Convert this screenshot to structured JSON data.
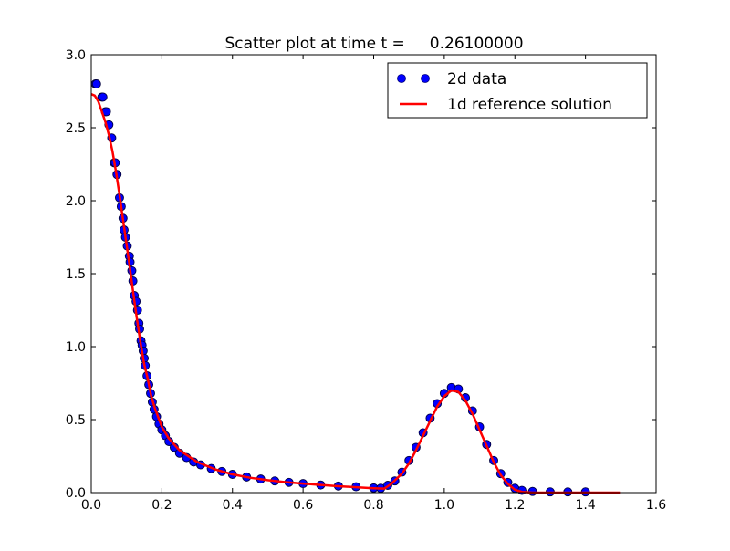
{
  "chart_data": {
    "type": "scatter",
    "title": "Scatter plot at time t =     0.26100000",
    "xlabel": "",
    "ylabel": "",
    "xlim": [
      0.0,
      1.6
    ],
    "ylim": [
      0.0,
      3.0
    ],
    "grid": false,
    "legend_position": "top-right",
    "x_ticks": [
      "0.0",
      "0.2",
      "0.4",
      "0.6",
      "0.8",
      "1.0",
      "1.2",
      "1.4",
      "1.6"
    ],
    "y_ticks": [
      "0.0",
      "0.5",
      "1.0",
      "1.5",
      "2.0",
      "2.5",
      "3.0"
    ],
    "series": [
      {
        "name": "2d data",
        "kind": "scatter",
        "color": "#0000ff",
        "points": [
          [
            0.012,
            2.8
          ],
          [
            0.015,
            2.8
          ],
          [
            0.03,
            2.71
          ],
          [
            0.033,
            2.71
          ],
          [
            0.04,
            2.61
          ],
          [
            0.043,
            2.61
          ],
          [
            0.05,
            2.52
          ],
          [
            0.058,
            2.43
          ],
          [
            0.065,
            2.26
          ],
          [
            0.068,
            2.26
          ],
          [
            0.073,
            2.18
          ],
          [
            0.08,
            2.02
          ],
          [
            0.085,
            1.96
          ],
          [
            0.09,
            1.88
          ],
          [
            0.093,
            1.8
          ],
          [
            0.097,
            1.75
          ],
          [
            0.102,
            1.69
          ],
          [
            0.108,
            1.62
          ],
          [
            0.11,
            1.58
          ],
          [
            0.115,
            1.52
          ],
          [
            0.118,
            1.45
          ],
          [
            0.122,
            1.35
          ],
          [
            0.127,
            1.31
          ],
          [
            0.131,
            1.25
          ],
          [
            0.135,
            1.16
          ],
          [
            0.137,
            1.12
          ],
          [
            0.141,
            1.04
          ],
          [
            0.144,
            1.01
          ],
          [
            0.147,
            0.97
          ],
          [
            0.15,
            0.92
          ],
          [
            0.153,
            0.87
          ],
          [
            0.158,
            0.8
          ],
          [
            0.163,
            0.74
          ],
          [
            0.168,
            0.68
          ],
          [
            0.173,
            0.62
          ],
          [
            0.178,
            0.57
          ],
          [
            0.185,
            0.52
          ],
          [
            0.192,
            0.47
          ],
          [
            0.2,
            0.43
          ],
          [
            0.21,
            0.39
          ],
          [
            0.22,
            0.35
          ],
          [
            0.235,
            0.31
          ],
          [
            0.25,
            0.27
          ],
          [
            0.27,
            0.24
          ],
          [
            0.29,
            0.21
          ],
          [
            0.31,
            0.19
          ],
          [
            0.34,
            0.165
          ],
          [
            0.37,
            0.145
          ],
          [
            0.4,
            0.125
          ],
          [
            0.44,
            0.107
          ],
          [
            0.48,
            0.093
          ],
          [
            0.52,
            0.08
          ],
          [
            0.56,
            0.07
          ],
          [
            0.6,
            0.062
          ],
          [
            0.65,
            0.052
          ],
          [
            0.7,
            0.045
          ],
          [
            0.75,
            0.04
          ],
          [
            0.8,
            0.032
          ],
          [
            0.82,
            0.03
          ],
          [
            0.84,
            0.05
          ],
          [
            0.86,
            0.08
          ],
          [
            0.88,
            0.14
          ],
          [
            0.9,
            0.22
          ],
          [
            0.92,
            0.31
          ],
          [
            0.94,
            0.41
          ],
          [
            0.96,
            0.51
          ],
          [
            0.98,
            0.61
          ],
          [
            1.0,
            0.68
          ],
          [
            1.02,
            0.72
          ],
          [
            1.04,
            0.71
          ],
          [
            1.06,
            0.65
          ],
          [
            1.08,
            0.56
          ],
          [
            1.1,
            0.45
          ],
          [
            1.12,
            0.33
          ],
          [
            1.14,
            0.22
          ],
          [
            1.16,
            0.13
          ],
          [
            1.18,
            0.07
          ],
          [
            1.2,
            0.03
          ],
          [
            1.22,
            0.015
          ],
          [
            1.25,
            0.008
          ],
          [
            1.3,
            0.005
          ],
          [
            1.35,
            0.005
          ],
          [
            1.4,
            0.005
          ]
        ]
      },
      {
        "name": "1d reference solution",
        "kind": "line",
        "color": "#ff0000",
        "points": [
          [
            0.0,
            2.73
          ],
          [
            0.01,
            2.72
          ],
          [
            0.02,
            2.68
          ],
          [
            0.03,
            2.61
          ],
          [
            0.04,
            2.54
          ],
          [
            0.05,
            2.45
          ],
          [
            0.06,
            2.34
          ],
          [
            0.07,
            2.2
          ],
          [
            0.08,
            2.04
          ],
          [
            0.09,
            1.87
          ],
          [
            0.1,
            1.7
          ],
          [
            0.11,
            1.53
          ],
          [
            0.12,
            1.35
          ],
          [
            0.13,
            1.18
          ],
          [
            0.14,
            1.02
          ],
          [
            0.15,
            0.88
          ],
          [
            0.16,
            0.78
          ],
          [
            0.17,
            0.66
          ],
          [
            0.18,
            0.58
          ],
          [
            0.2,
            0.45
          ],
          [
            0.22,
            0.37
          ],
          [
            0.25,
            0.29
          ],
          [
            0.3,
            0.21
          ],
          [
            0.35,
            0.16
          ],
          [
            0.4,
            0.125
          ],
          [
            0.45,
            0.102
          ],
          [
            0.5,
            0.085
          ],
          [
            0.55,
            0.072
          ],
          [
            0.6,
            0.062
          ],
          [
            0.65,
            0.052
          ],
          [
            0.7,
            0.044
          ],
          [
            0.75,
            0.037
          ],
          [
            0.8,
            0.03
          ],
          [
            0.83,
            0.027
          ],
          [
            0.85,
            0.06
          ],
          [
            0.88,
            0.13
          ],
          [
            0.9,
            0.2
          ],
          [
            0.92,
            0.29
          ],
          [
            0.94,
            0.39
          ],
          [
            0.96,
            0.49
          ],
          [
            0.98,
            0.59
          ],
          [
            1.0,
            0.66
          ],
          [
            1.02,
            0.7
          ],
          [
            1.04,
            0.69
          ],
          [
            1.06,
            0.63
          ],
          [
            1.08,
            0.54
          ],
          [
            1.1,
            0.43
          ],
          [
            1.12,
            0.32
          ],
          [
            1.14,
            0.21
          ],
          [
            1.16,
            0.12
          ],
          [
            1.18,
            0.06
          ],
          [
            1.2,
            0.02
          ],
          [
            1.22,
            0.005
          ],
          [
            1.25,
            0.0
          ],
          [
            1.3,
            0.0
          ],
          [
            1.4,
            0.0
          ],
          [
            1.5,
            0.0
          ]
        ]
      }
    ]
  }
}
